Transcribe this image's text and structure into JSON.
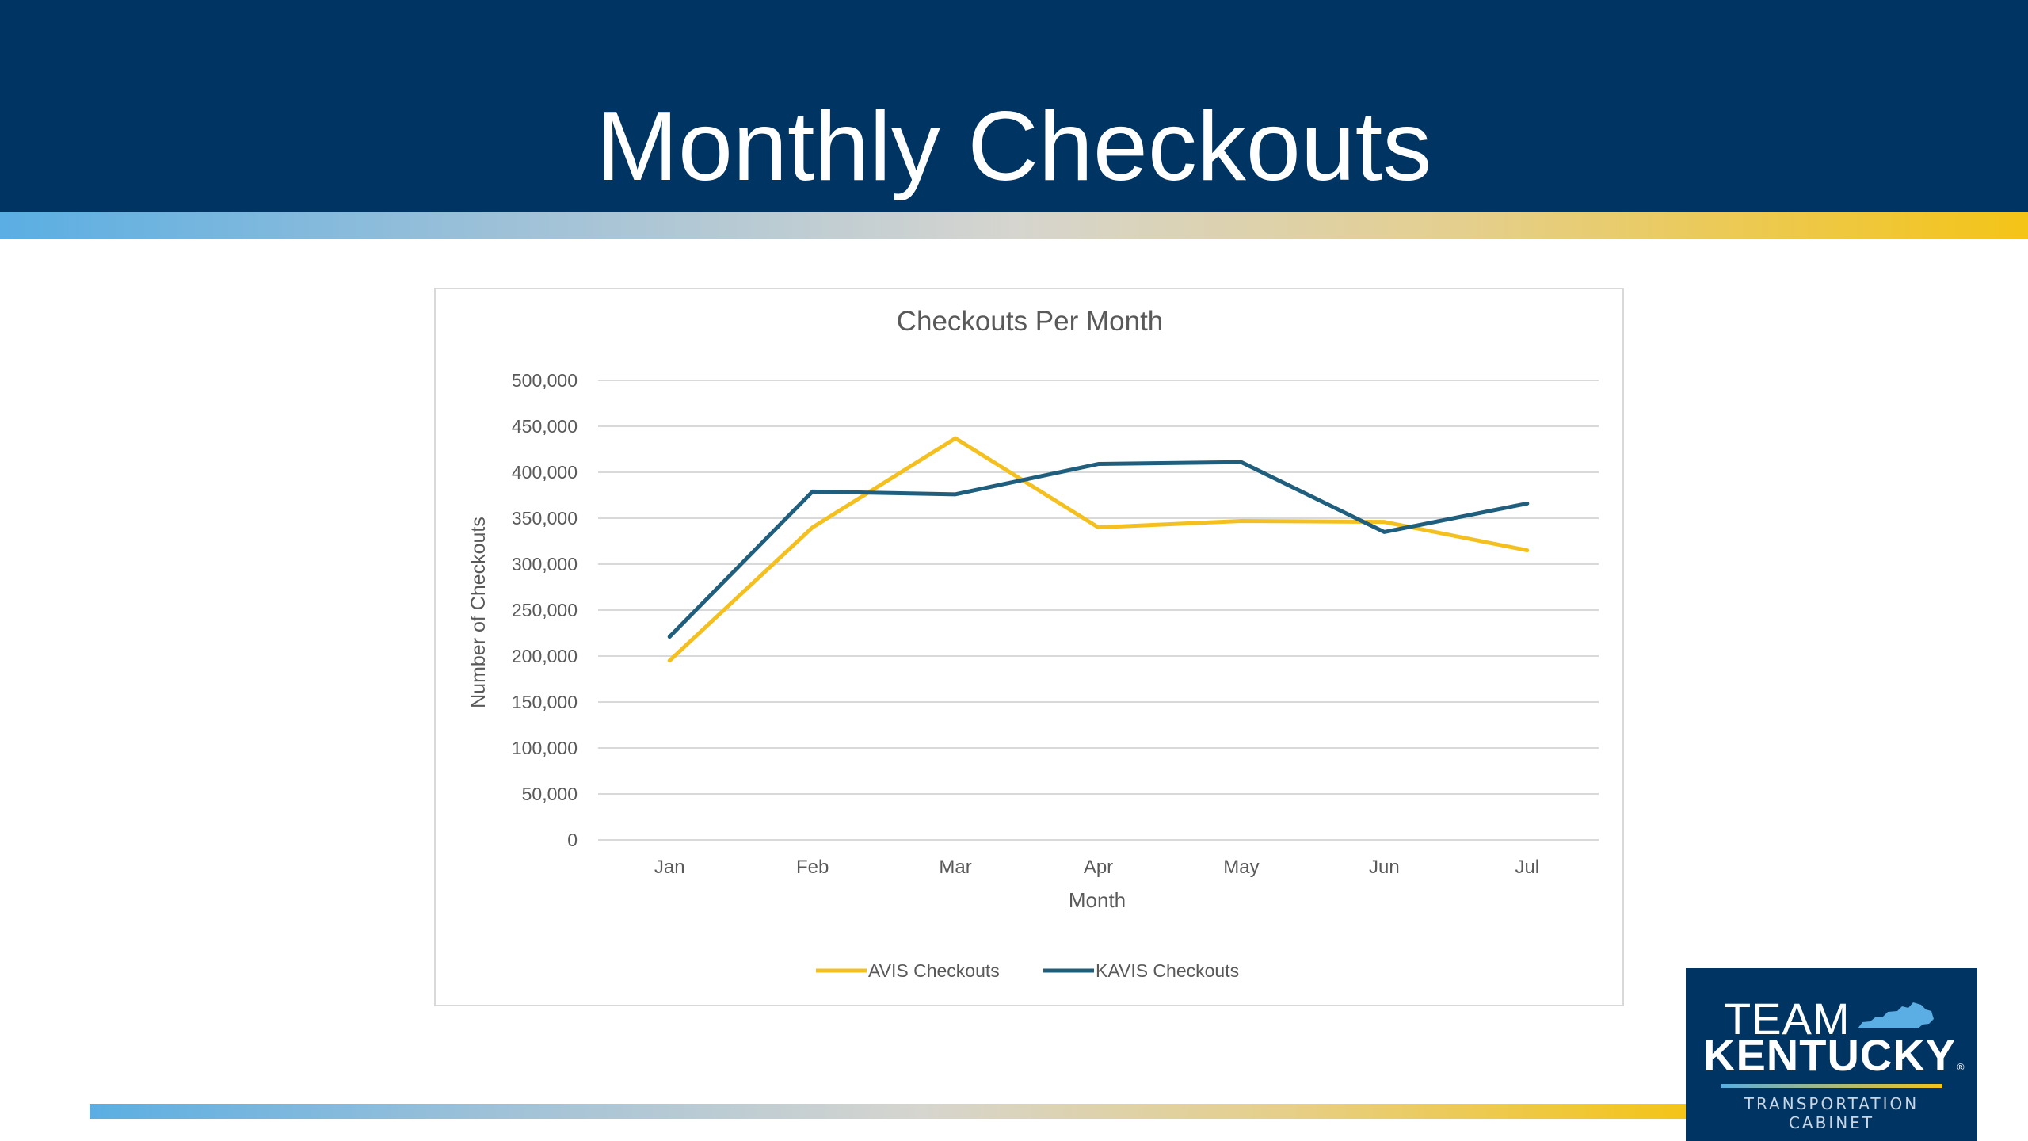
{
  "slide": {
    "title": "Monthly Checkouts"
  },
  "colors": {
    "header_bg": "#003462",
    "avis_series": "#F4C020",
    "kavis_series": "#1F5F7D",
    "gridline": "#d9d9d9"
  },
  "logo": {
    "team": "TEAM",
    "name": "KENTUCKY",
    "registered": "®",
    "line1": "TRANSPORTATION",
    "line2": "CABINET",
    "icon": "kentucky-state-icon"
  },
  "chart_data": {
    "type": "line",
    "title": "Checkouts Per Month",
    "xlabel": "Month",
    "ylabel": "Number of Checkouts",
    "categories": [
      "Jan",
      "Feb",
      "Mar",
      "Apr",
      "May",
      "Jun",
      "Jul"
    ],
    "ylim": [
      0,
      500000
    ],
    "yticks": [
      0,
      50000,
      100000,
      150000,
      200000,
      250000,
      300000,
      350000,
      400000,
      450000,
      500000
    ],
    "ytick_labels": [
      "0",
      "50,000",
      "100,000",
      "150,000",
      "200,000",
      "250,000",
      "300,000",
      "350,000",
      "400,000",
      "450,000",
      "500,000"
    ],
    "grid": true,
    "legend_position": "bottom",
    "series": [
      {
        "name": "AVIS Checkouts",
        "color": "#F4C020",
        "values": [
          195000,
          340000,
          437000,
          340000,
          347000,
          346000,
          315000
        ]
      },
      {
        "name": "KAVIS Checkouts",
        "color": "#1F5F7D",
        "values": [
          221000,
          379000,
          376000,
          409000,
          411000,
          335000,
          366000
        ]
      }
    ]
  }
}
